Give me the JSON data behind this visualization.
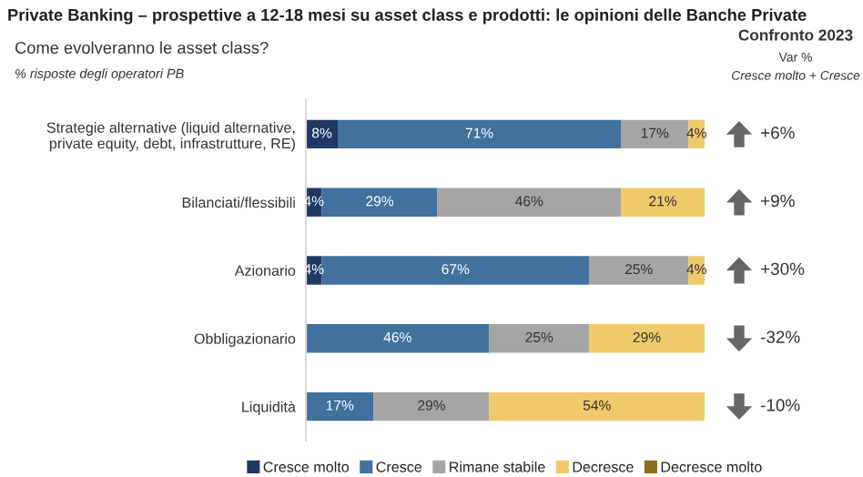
{
  "chart_data": {
    "type": "bar",
    "orientation": "horizontal",
    "stacked": true,
    "grid": false,
    "legend": "bottom",
    "title": "Private Banking – prospettive a 12-18 mesi su asset class e prodotti: le opinioni delle Banche Private",
    "subtitle": "Come evolveranno le asset class?",
    "xlabel": "% risposte degli operatori PB",
    "categories": [
      "Strategie alternative (liquid alternative,\nprivate equity, debt, infrastrutture, RE)",
      "Bilanciati/flessibili",
      "Azionario",
      "Obbligazionario",
      "Liquidità"
    ],
    "series": [
      {
        "name": "Cresce molto",
        "color": "#1f3864",
        "values": [
          8,
          4,
          4,
          null,
          null
        ],
        "value_labels": [
          "8%",
          "4%",
          "4%",
          null,
          null
        ]
      },
      {
        "name": "Cresce",
        "color": "#41719c",
        "values": [
          71,
          29,
          67,
          46,
          17
        ],
        "value_labels": [
          "71%",
          "29%",
          "67%",
          "46%",
          "17%"
        ]
      },
      {
        "name": "Rimane stabile",
        "color": "#a5a5a5",
        "values": [
          17,
          46,
          25,
          25,
          29
        ],
        "value_labels": [
          "17%",
          "46%",
          "25%",
          "25%",
          "29%"
        ]
      },
      {
        "name": "Decresce",
        "color": "#f0c96a",
        "values": [
          4,
          21,
          4,
          29,
          54
        ],
        "value_labels": [
          "4%",
          "21%",
          "4%",
          "29%",
          "54%"
        ]
      },
      {
        "name": "Decresce molto",
        "color": "#8c6d1f",
        "values": [
          null,
          null,
          null,
          null,
          null
        ]
      }
    ],
    "annotations": [
      "Confronto 2023",
      "Var %",
      "Cresce molto + Cresce",
      "+6%",
      "+9%",
      "+30%",
      "-32%",
      "-10%"
    ]
  }
}
